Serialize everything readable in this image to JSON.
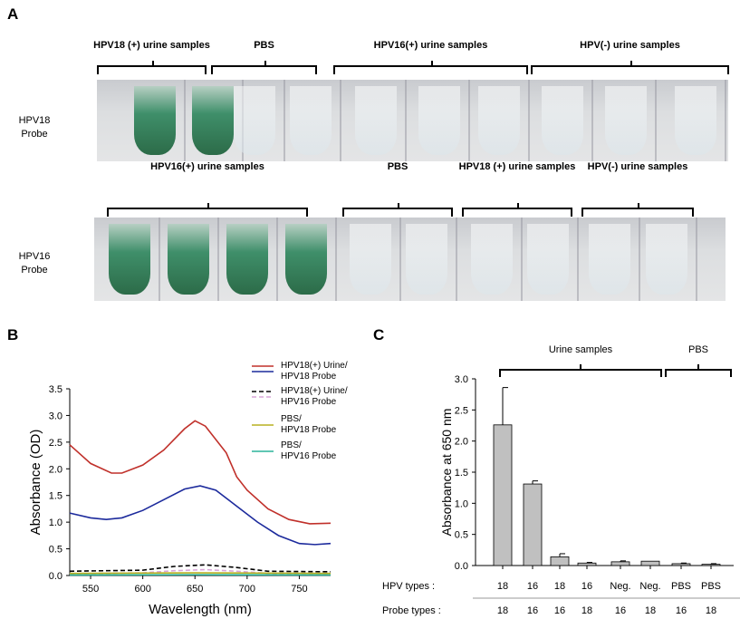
{
  "panelA": {
    "label": "A",
    "top": {
      "probe": "HPV18 Probe",
      "groups": [
        {
          "label": "HPV18 (+) urine samples",
          "tubes": [
            "g",
            "g"
          ]
        },
        {
          "label": "PBS",
          "tubes": [
            "c",
            "c"
          ]
        },
        {
          "label": "HPV16(+) urine samples",
          "tubes": [
            "c",
            "c",
            "c"
          ]
        },
        {
          "label": "HPV(-) urine samples",
          "tubes": [
            "c",
            "c",
            "c"
          ]
        }
      ]
    },
    "bottom": {
      "probe": "HPV16 Probe",
      "groups": [
        {
          "label": "HPV16(+) urine samples",
          "tubes": [
            "g",
            "g",
            "g",
            "g"
          ]
        },
        {
          "label": "PBS",
          "tubes": [
            "c",
            "c"
          ]
        },
        {
          "label": "HPV18 (+) urine samples",
          "tubes": [
            "c",
            "c"
          ]
        },
        {
          "label": "HPV(-) urine samples",
          "tubes": [
            "c",
            "c"
          ]
        }
      ]
    }
  },
  "chart_data": [
    {
      "panel": "B",
      "type": "line",
      "xlabel": "Wavelength (nm)",
      "ylabel": "Absorbance (OD)",
      "xlim": [
        530,
        780
      ],
      "ylim": [
        0,
        3.5
      ],
      "xticks": [
        "550",
        "600",
        "650",
        "700",
        "750"
      ],
      "yticks": [
        "0.0",
        "0.5",
        "1.0",
        "1.5",
        "2.0",
        "2.5",
        "3.0",
        "3.5"
      ],
      "legend": [
        "HPV18(+) Urine/",
        "HPV18 Probe",
        "HPV18(+) Urine/",
        "HPV16 Probe",
        "PBS/",
        "HPV18 Probe",
        "PBS/",
        "HPV16 Probe"
      ],
      "series": [
        {
          "name": "HPV18(+) Urine",
          "color": "#c0302a",
          "dash": false,
          "x": [
            530,
            550,
            570,
            580,
            600,
            620,
            640,
            650,
            660,
            680,
            690,
            700,
            720,
            740,
            760,
            780
          ],
          "y": [
            2.45,
            2.1,
            1.92,
            1.92,
            2.07,
            2.35,
            2.75,
            2.9,
            2.8,
            2.3,
            1.85,
            1.6,
            1.25,
            1.05,
            0.97,
            0.98
          ]
        },
        {
          "name": "HPV18 Probe",
          "color": "#1c2a9c",
          "dash": false,
          "x": [
            530,
            550,
            565,
            580,
            600,
            620,
            640,
            655,
            670,
            690,
            710,
            730,
            750,
            765,
            780
          ],
          "y": [
            1.17,
            1.08,
            1.05,
            1.08,
            1.22,
            1.42,
            1.62,
            1.68,
            1.6,
            1.3,
            1.0,
            0.75,
            0.6,
            0.58,
            0.6
          ]
        },
        {
          "name": "HPV18(+) Urine / HPV16 Probe (black)",
          "color": "#000000",
          "dash": true,
          "x": [
            530,
            600,
            630,
            660,
            690,
            720,
            780
          ],
          "y": [
            0.08,
            0.1,
            0.17,
            0.2,
            0.15,
            0.08,
            0.07
          ]
        },
        {
          "name": "HPV16 Probe (pink)",
          "color": "#d9a6d9",
          "dash": true,
          "x": [
            530,
            600,
            630,
            660,
            690,
            720,
            780
          ],
          "y": [
            0.03,
            0.05,
            0.09,
            0.11,
            0.08,
            0.04,
            0.03
          ]
        },
        {
          "name": "PBS/HPV18 Probe",
          "color": "#b8b020",
          "dash": false,
          "x": [
            530,
            650,
            780
          ],
          "y": [
            0.04,
            0.05,
            0.04
          ]
        },
        {
          "name": "PBS/HPV16 Probe",
          "color": "#2bb39a",
          "dash": false,
          "x": [
            530,
            650,
            780
          ],
          "y": [
            0.01,
            0.015,
            0.01
          ]
        }
      ]
    },
    {
      "panel": "C",
      "type": "bar",
      "ylabel": "Absorbance at 650 nm",
      "ylim": [
        0,
        3.0
      ],
      "yticks": [
        "0.0",
        "0.5",
        "1.0",
        "1.5",
        "2.0",
        "2.5",
        "3.0"
      ],
      "group_labels": [
        "Urine samples",
        "PBS"
      ],
      "row_labels": [
        "HPV types :",
        "Probe types :"
      ],
      "hpv_types": [
        "18",
        "16",
        "18",
        "16",
        "Neg.",
        "Neg.",
        "PBS",
        "PBS"
      ],
      "probe_types": [
        "18",
        "16",
        "16",
        "18",
        "16",
        "18",
        "16",
        "18"
      ],
      "values": [
        2.26,
        1.31,
        0.14,
        0.04,
        0.06,
        0.07,
        0.03,
        0.02
      ],
      "errors": [
        0.6,
        0.05,
        0.05,
        0.01,
        0.015,
        0.0,
        0.01,
        0.01
      ],
      "bar_color": "#c0c0c0"
    }
  ],
  "panelB": {
    "label": "B"
  },
  "panelC": {
    "label": "C"
  }
}
